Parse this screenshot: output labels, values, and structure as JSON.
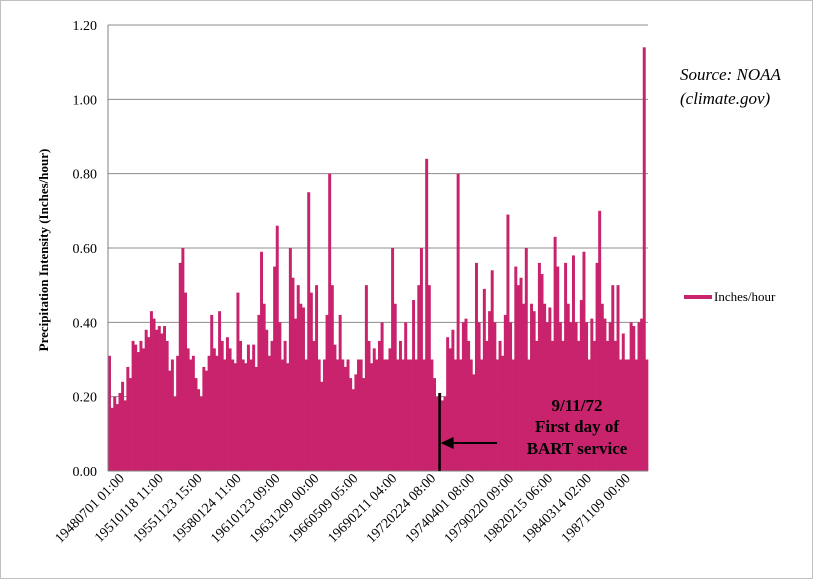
{
  "chart_data": {
    "type": "bar",
    "title": "",
    "ylabel": "Precipitation Intensity (Inches/hour)",
    "xlabel": "",
    "ylim": [
      0,
      1.2
    ],
    "yticks": [
      "0.00",
      "0.20",
      "0.40",
      "0.60",
      "0.80",
      "1.00",
      "1.20"
    ],
    "xtick_labels": [
      "19480701 01:00",
      "19510118 11:00",
      "19551123 15:00",
      "19580124 11:00",
      "19610123 09:00",
      "19631209 00:00",
      "19660509 05:00",
      "19690211 04:00",
      "19720224 08:00",
      "19740401 08:00",
      "19790220 09:00",
      "19820215 06:00",
      "19840314 02:00",
      "19871109 00:00"
    ],
    "grid": true,
    "legend_position": "right",
    "series": [
      {
        "name": "Inches/hour",
        "color": "#C8236C",
        "values": [
          0.31,
          0.17,
          0.2,
          0.18,
          0.21,
          0.24,
          0.19,
          0.28,
          0.25,
          0.35,
          0.34,
          0.32,
          0.35,
          0.33,
          0.38,
          0.36,
          0.43,
          0.41,
          0.38,
          0.39,
          0.37,
          0.39,
          0.35,
          0.27,
          0.3,
          0.2,
          0.31,
          0.56,
          0.6,
          0.48,
          0.33,
          0.3,
          0.31,
          0.25,
          0.22,
          0.2,
          0.28,
          0.27,
          0.31,
          0.42,
          0.33,
          0.31,
          0.43,
          0.35,
          0.3,
          0.36,
          0.33,
          0.3,
          0.29,
          0.48,
          0.35,
          0.3,
          0.29,
          0.34,
          0.3,
          0.34,
          0.28,
          0.42,
          0.59,
          0.45,
          0.38,
          0.31,
          0.35,
          0.55,
          0.66,
          0.4,
          0.3,
          0.35,
          0.29,
          0.6,
          0.52,
          0.41,
          0.5,
          0.45,
          0.44,
          0.3,
          0.75,
          0.48,
          0.35,
          0.5,
          0.3,
          0.24,
          0.3,
          0.42,
          0.8,
          0.5,
          0.34,
          0.3,
          0.42,
          0.3,
          0.28,
          0.3,
          0.25,
          0.22,
          0.26,
          0.3,
          0.3,
          0.25,
          0.5,
          0.35,
          0.29,
          0.33,
          0.3,
          0.35,
          0.4,
          0.3,
          0.3,
          0.33,
          0.6,
          0.45,
          0.3,
          0.35,
          0.3,
          0.4,
          0.3,
          0.3,
          0.46,
          0.3,
          0.5,
          0.6,
          0.3,
          0.84,
          0.5,
          0.3,
          0.25,
          0.2,
          0.21,
          0.19,
          0.2,
          0.36,
          0.33,
          0.38,
          0.3,
          0.8,
          0.3,
          0.4,
          0.41,
          0.35,
          0.3,
          0.26,
          0.56,
          0.4,
          0.3,
          0.49,
          0.35,
          0.43,
          0.54,
          0.4,
          0.3,
          0.35,
          0.31,
          0.42,
          0.69,
          0.4,
          0.3,
          0.55,
          0.5,
          0.52,
          0.45,
          0.6,
          0.3,
          0.45,
          0.43,
          0.35,
          0.56,
          0.53,
          0.45,
          0.4,
          0.44,
          0.35,
          0.63,
          0.55,
          0.4,
          0.35,
          0.56,
          0.45,
          0.4,
          0.58,
          0.4,
          0.35,
          0.46,
          0.59,
          0.4,
          0.3,
          0.41,
          0.35,
          0.56,
          0.7,
          0.45,
          0.41,
          0.35,
          0.4,
          0.5,
          0.35,
          0.5,
          0.3,
          0.37,
          0.3,
          0.3,
          0.4,
          0.39,
          0.3,
          0.4,
          0.41,
          1.14,
          0.3
        ]
      }
    ],
    "annotation": {
      "lines": [
        "9/11/72",
        "First day of",
        "BART service"
      ],
      "marker_index": 126
    },
    "source_lines": [
      "Source: NOAA",
      "(climate.gov)"
    ]
  }
}
